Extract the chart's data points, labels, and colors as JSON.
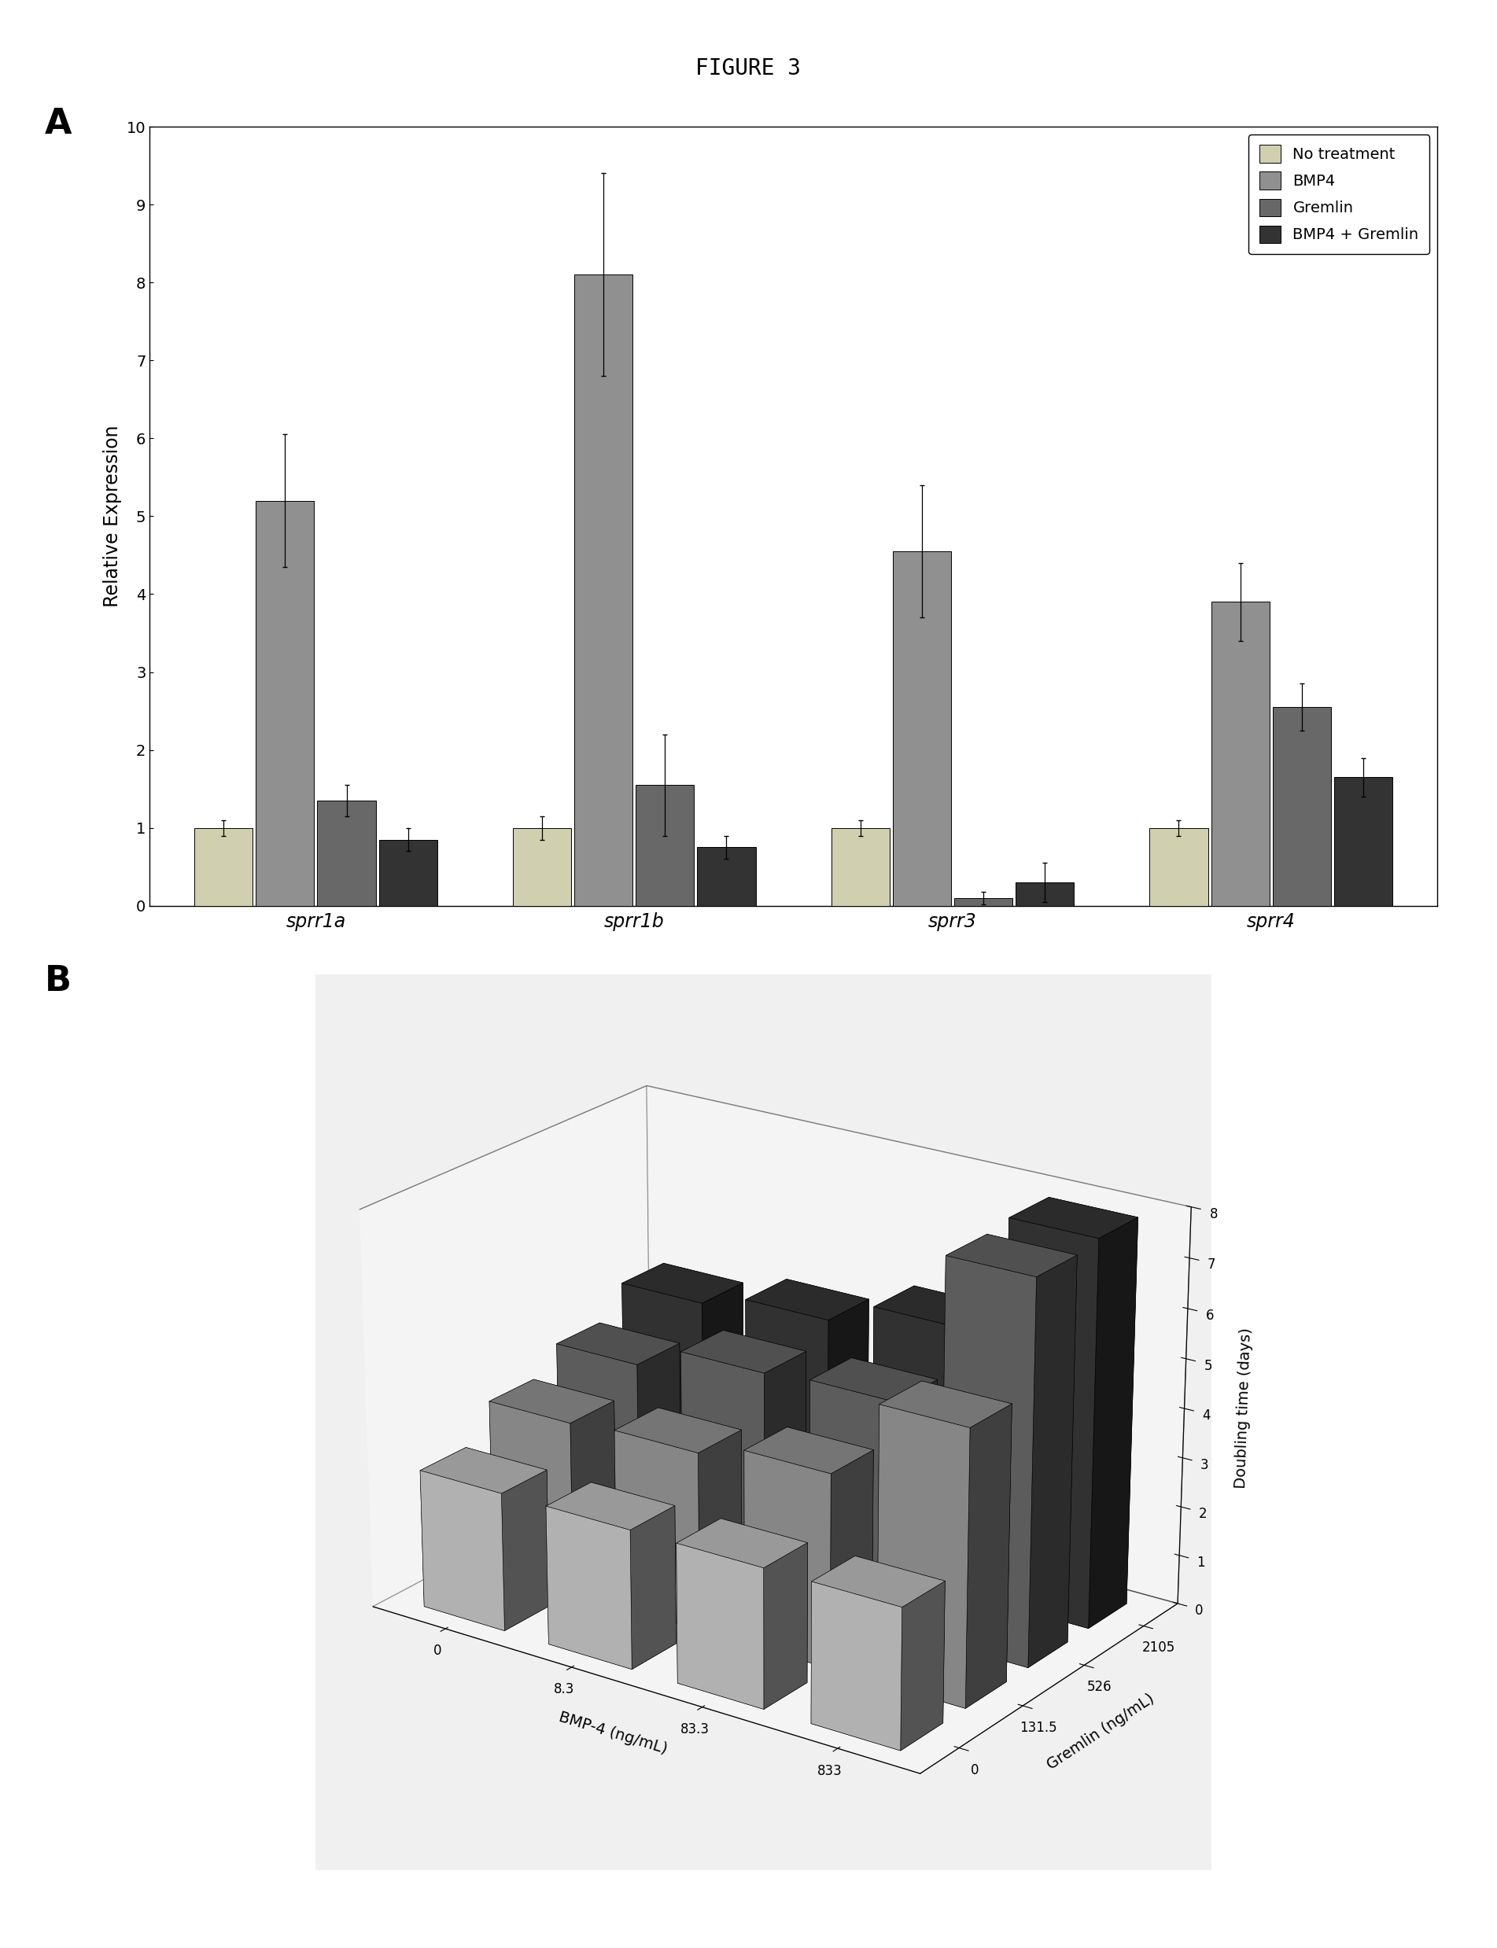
{
  "figure_title": "FIGURE 3",
  "panel_A": {
    "genes": [
      "sprr1a",
      "sprr1b",
      "sprr3",
      "sprr4"
    ],
    "conditions": [
      "No treatment",
      "BMP4",
      "Gremlin",
      "BMP4 + Gremlin"
    ],
    "colors": [
      "#d0d0b0",
      "#909090",
      "#686868",
      "#333333"
    ],
    "values": [
      [
        1.0,
        5.2,
        1.35,
        0.85
      ],
      [
        1.0,
        8.1,
        1.55,
        0.75
      ],
      [
        1.0,
        4.55,
        0.1,
        0.3
      ],
      [
        1.0,
        3.9,
        2.55,
        1.65
      ]
    ],
    "errors": [
      [
        0.1,
        0.85,
        0.2,
        0.15
      ],
      [
        0.15,
        1.3,
        0.65,
        0.15
      ],
      [
        0.1,
        0.85,
        0.08,
        0.25
      ],
      [
        0.1,
        0.5,
        0.3,
        0.25
      ]
    ],
    "ylabel": "Relative Expression",
    "ylim": [
      0,
      10
    ],
    "yticks": [
      0,
      1,
      2,
      3,
      4,
      5,
      6,
      7,
      8,
      9,
      10
    ]
  },
  "panel_B": {
    "bmp4_labels": [
      "0",
      "8.3",
      "83.3",
      "833"
    ],
    "gremlin_labels": [
      "0",
      "131.5",
      "526",
      "2105"
    ],
    "xlabel": "BMP-4 (ng/mL)",
    "ylabel": "Doubling time (days)",
    "gremlin_axis_label": "Gremlin (ng/mL)",
    "zlim": [
      0,
      8
    ],
    "zticks": [
      0,
      1,
      2,
      3,
      4,
      5,
      6,
      7,
      8
    ],
    "bar_data": [
      [
        2.8,
        3.5,
        4.0,
        4.6
      ],
      [
        2.8,
        3.6,
        4.5,
        4.9
      ],
      [
        2.8,
        3.9,
        4.6,
        5.4
      ],
      [
        2.8,
        5.5,
        7.7,
        7.8
      ]
    ],
    "bar_colors": [
      "#c8c8c8",
      "#989898",
      "#686868",
      "#383838"
    ]
  },
  "background_color": "#ffffff"
}
